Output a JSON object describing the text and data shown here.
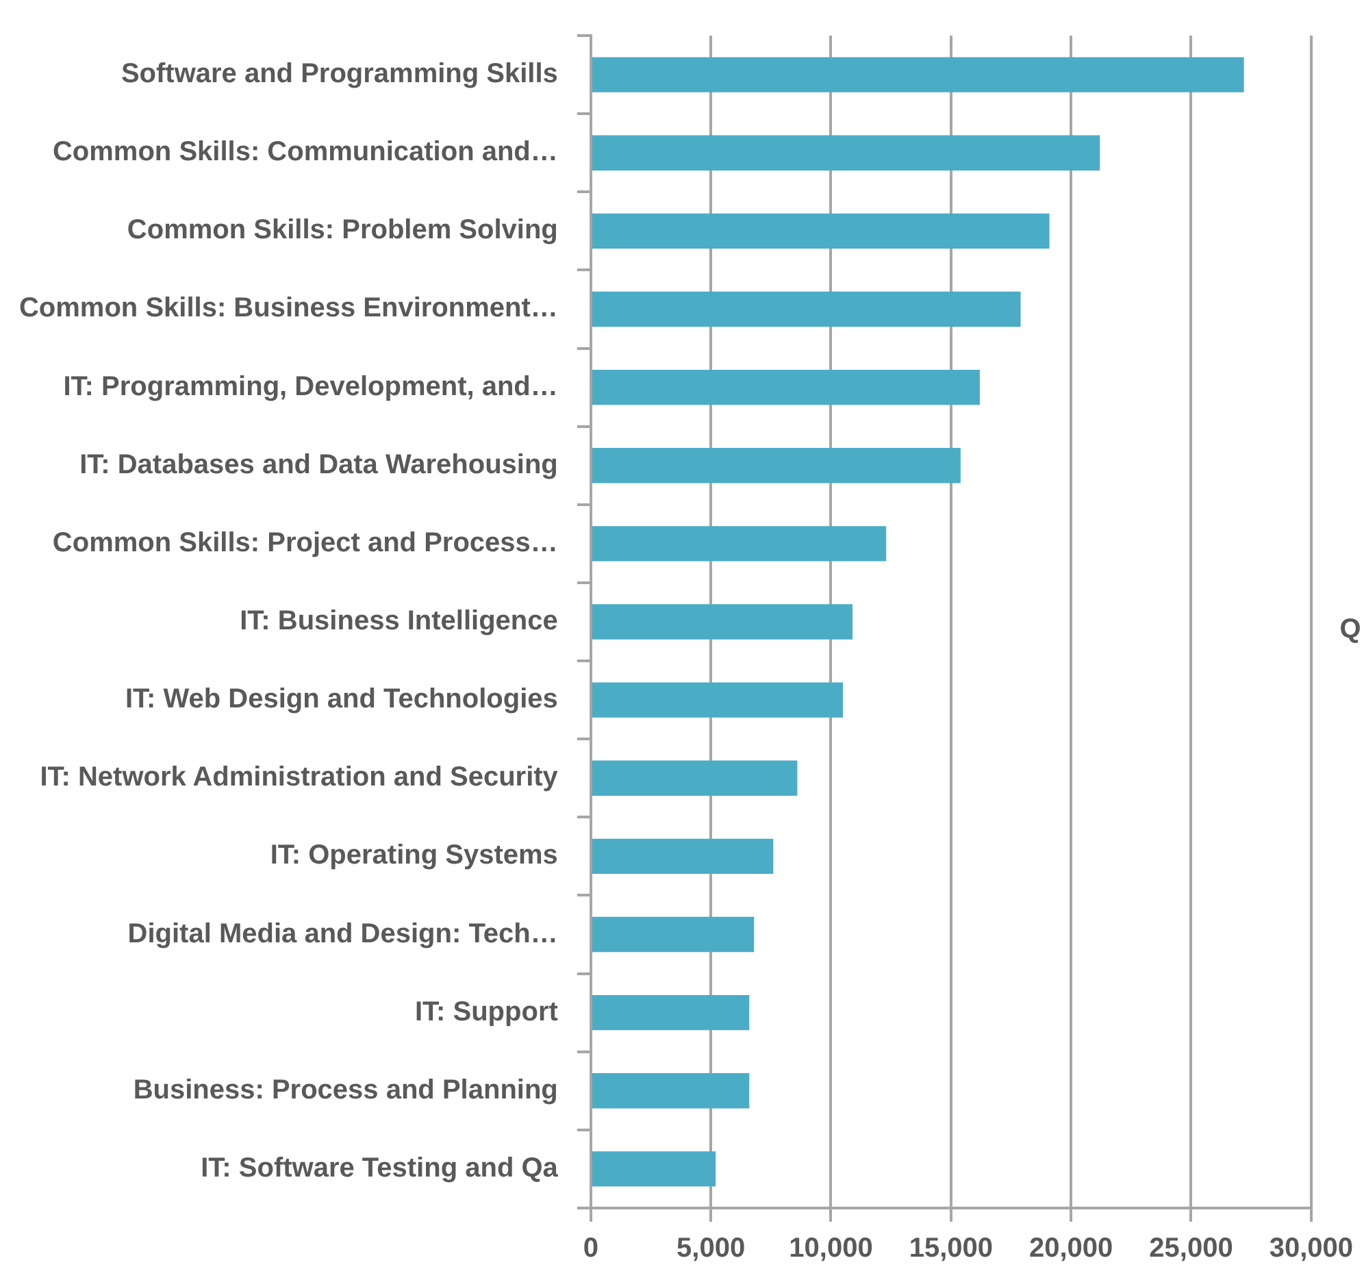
{
  "chart_data": {
    "type": "bar",
    "orientation": "horizontal",
    "categories": [
      "Software and Programming Skills",
      "Common Skills: Communication and…",
      "Common Skills: Problem Solving",
      "Common Skills: Business Environment…",
      "IT: Programming, Development, and…",
      "IT: Databases and Data Warehousing",
      "Common Skills: Project and Process…",
      "IT: Business Intelligence",
      "IT: Web Design and Technologies",
      "IT: Network Administration and Security",
      "IT: Operating Systems",
      "Digital Media and Design: Tech…",
      "IT: Support",
      "Business: Process and Planning",
      "IT: Software Testing and Qa"
    ],
    "values": [
      27200,
      21200,
      19100,
      17900,
      16200,
      15400,
      12300,
      10900,
      10500,
      8600,
      7600,
      6800,
      6600,
      6600,
      5200
    ],
    "color": "#4bacc6",
    "xlim": [
      0,
      30000
    ],
    "xticks": [
      {
        "value": 0,
        "label": "0"
      },
      {
        "value": 5000,
        "label": "5,000"
      },
      {
        "value": 10000,
        "label": "10,000"
      },
      {
        "value": 15000,
        "label": "15,000"
      },
      {
        "value": 20000,
        "label": "20,000"
      },
      {
        "value": 25000,
        "label": "25,000"
      },
      {
        "value": 30000,
        "label": "30,000"
      }
    ],
    "grid": "x",
    "legend": false,
    "annotations": [
      "Q"
    ]
  }
}
